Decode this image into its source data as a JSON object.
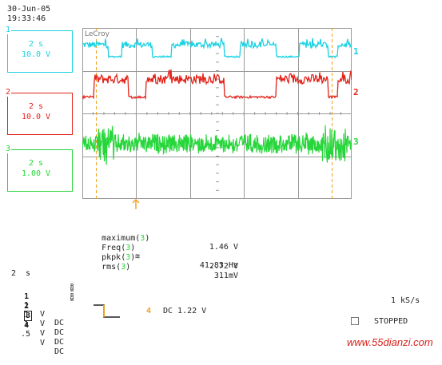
{
  "header": {
    "date": "30-Jun-05",
    "time": "19:33:46"
  },
  "scope_brand": "LeCroy",
  "channels": [
    {
      "num": "1",
      "timebase": "2 s",
      "volts_div": "10.0 V",
      "color": "#19d2e3"
    },
    {
      "num": "2",
      "timebase": "2 s",
      "volts_div": "10.0 V",
      "color": "#e2231a"
    },
    {
      "num": "3",
      "timebase": "2 s",
      "volts_div": "1.00 V",
      "color": "#26d63a"
    }
  ],
  "trace_markers": [
    "1",
    "2",
    "3"
  ],
  "measurements": [
    {
      "param": "maximum",
      "ch": "3",
      "extra": "",
      "value": "1.46 V"
    },
    {
      "param": "Freq",
      "ch": "3",
      "extra": "≋",
      "value": "41.83 Hz"
    },
    {
      "param": "pkpk",
      "ch": "3",
      "extra": "",
      "value": "2.72 V"
    },
    {
      "param": "rms",
      "ch": "3",
      "extra": "",
      "value": "311mV"
    }
  ],
  "bottom": {
    "timebase": "2  s",
    "coupling_rows": [
      {
        "ch": "1",
        "volts": "1",
        "unit": "V",
        "coupling": "DC"
      },
      {
        "ch": "2",
        "volts": "1",
        "unit": "V",
        "coupling": "DC"
      },
      {
        "ch": "3",
        "volts": "1",
        "unit": "V",
        "coupling": "DC"
      },
      {
        "ch": "4",
        "volts": ".5",
        "unit": "V",
        "coupling": "DC"
      }
    ],
    "trigger_channel": "4",
    "trigger_setting": "DC 1.22 V",
    "sample_rate": "1 kS/s",
    "status": "STOPPED"
  },
  "watermark": "www.55dianzi.com",
  "colors": {
    "grid": "#9a9a9a",
    "cursor": "#f0a020",
    "ch1": "#19d2e3",
    "ch2": "#e2231a",
    "ch3": "#26d63a"
  }
}
